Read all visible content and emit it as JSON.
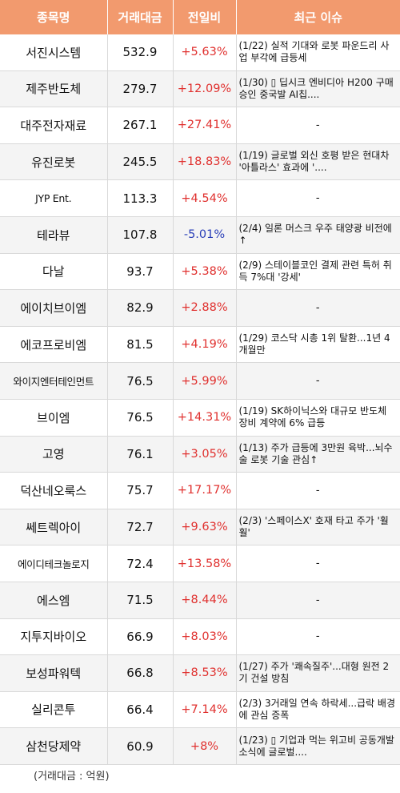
{
  "headers": {
    "name": "종목명",
    "volume": "거래대금",
    "change": "전일비",
    "issue": "최근 이슈"
  },
  "rows": [
    {
      "name": "서진시스템",
      "volume": "532.9",
      "change": "+5.63%",
      "dir": "up",
      "issue": "(1/22) 실적 기대와 로봇 파운드리 사업 부각에 급등세"
    },
    {
      "name": "제주반도체",
      "volume": "279.7",
      "change": "+12.09%",
      "dir": "up",
      "issue": "(1/30) ▯ 딥시크 엔비디아 H200 구매 승인 중국발 AI칩...."
    },
    {
      "name": "대주전자재료",
      "volume": "267.1",
      "change": "+27.41%",
      "dir": "up",
      "issue": "-"
    },
    {
      "name": "유진로봇",
      "volume": "245.5",
      "change": "+18.83%",
      "dir": "up",
      "issue": "(1/19) 글로벌 외신 호평 받은 현대차 '아틀라스' 효과에 '...."
    },
    {
      "name": "JYP Ent.",
      "volume": "113.3",
      "change": "+4.54%",
      "dir": "up",
      "issue": "-"
    },
    {
      "name": "테라뷰",
      "volume": "107.8",
      "change": "-5.01%",
      "dir": "down",
      "issue": "(2/4) 일론 머스크 우주 태양광 비전에 ↑"
    },
    {
      "name": "다날",
      "volume": "93.7",
      "change": "+5.38%",
      "dir": "up",
      "issue": "(2/9) 스테이블코인 결제 관련 특허 취득 7%대 '강세'"
    },
    {
      "name": "에이치브이엠",
      "volume": "82.9",
      "change": "+2.88%",
      "dir": "up",
      "issue": "-"
    },
    {
      "name": "에코프로비엠",
      "volume": "81.5",
      "change": "+4.19%",
      "dir": "up",
      "issue": "(1/29) 코스닥 시총 1위 탈환...1년 4개월만"
    },
    {
      "name": "와이지엔터테인먼트",
      "volume": "76.5",
      "change": "+5.99%",
      "dir": "up",
      "issue": "-"
    },
    {
      "name": "브이엠",
      "volume": "76.5",
      "change": "+14.31%",
      "dir": "up",
      "issue": "(1/19) SK하이닉스와 대규모 반도체 장비 계약에 6% 급등"
    },
    {
      "name": "고영",
      "volume": "76.1",
      "change": "+3.05%",
      "dir": "up",
      "issue": "(1/13) 주가 급등에 3만원 육박...뇌수술 로봇 기술 관심↑"
    },
    {
      "name": "덕산네오룩스",
      "volume": "75.7",
      "change": "+17.17%",
      "dir": "up",
      "issue": "-"
    },
    {
      "name": "쎄트렉아이",
      "volume": "72.7",
      "change": "+9.63%",
      "dir": "up",
      "issue": "(2/3) '스페이스X' 호재 타고 주가 '훨훨'"
    },
    {
      "name": "에이디테크놀로지",
      "volume": "72.4",
      "change": "+13.58%",
      "dir": "up",
      "issue": "-"
    },
    {
      "name": "에스엠",
      "volume": "71.5",
      "change": "+8.44%",
      "dir": "up",
      "issue": "-"
    },
    {
      "name": "지투지바이오",
      "volume": "66.9",
      "change": "+8.03%",
      "dir": "up",
      "issue": "-"
    },
    {
      "name": "보성파워텍",
      "volume": "66.8",
      "change": "+8.53%",
      "dir": "up",
      "issue": "(1/27) 주가 '쾌속질주'...대형 원전 2기 건설 방침"
    },
    {
      "name": "실리콘투",
      "volume": "66.4",
      "change": "+7.14%",
      "dir": "up",
      "issue": "(2/3) 3거래일 연속 하락세...급락 배경에 관심 증폭"
    },
    {
      "name": "삼천당제약",
      "volume": "60.9",
      "change": "+8%",
      "dir": "up",
      "issue": "(1/23) ▯ 기업과 먹는 위고비 공동개발 소식에 글로벌...."
    }
  ],
  "footnote": "(거래대금 : 억원)"
}
